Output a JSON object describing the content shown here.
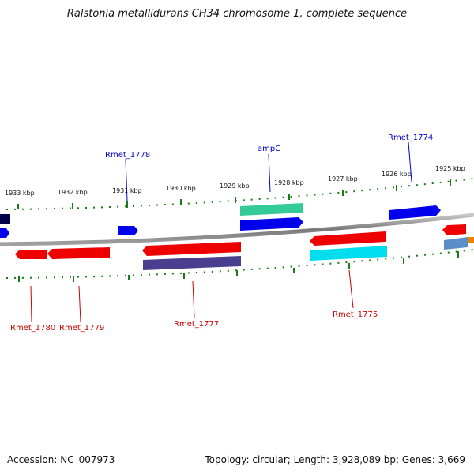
{
  "title": "Ralstonia metallidurans CH34 chromosome 1, complete sequence",
  "footer": {
    "accession": "Accession: NC_007973",
    "summary": "Topology: circular; Length: 3,928,089 bp; Genes: 3,669"
  },
  "colors": {
    "backbone": "#8c8c8c",
    "forward_label": "#0000cc",
    "reverse_label": "#cc0000",
    "scale_tick": "#1a7a1a"
  },
  "scale_labels": [
    "1933 kbp",
    "1932 kbp",
    "1931 kbp",
    "1930 kbp",
    "1929 kbp",
    "1928 kbp",
    "1927 kbp",
    "1926 kbp",
    "1925 kbp"
  ],
  "gene_labels": {
    "forward": [
      "Rmet_1778",
      "ampC",
      "Rmet_1774"
    ],
    "reverse": [
      "Rmet_1780",
      "Rmet_1779",
      "Rmet_1777",
      "Rmet_1775"
    ]
  },
  "features": {
    "forward_genes": [
      "Rmet_1778",
      "ampC",
      "Rmet_1774"
    ],
    "reverse_genes": [
      "Rmet_1780",
      "Rmet_1779",
      "Rmet_1777",
      "Rmet_1775"
    ],
    "feature_colors": [
      "#0000ee",
      "#ee0000",
      "#33cc99",
      "#00ddee",
      "#4a3f8f",
      "#5b8fc7",
      "#f08000",
      "#00004a"
    ]
  }
}
